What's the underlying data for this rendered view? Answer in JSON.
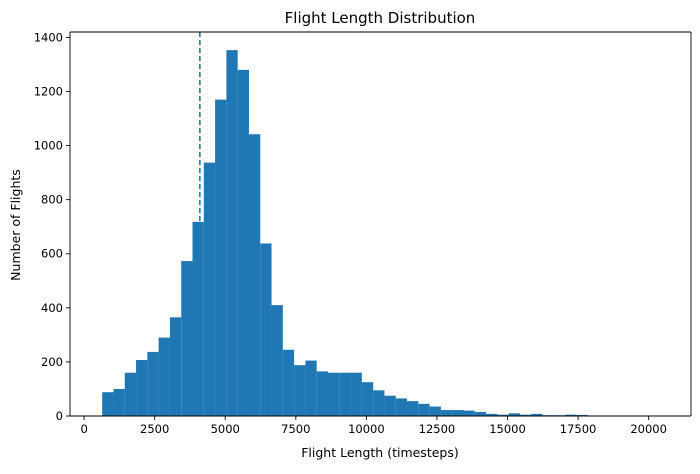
{
  "chart_data": {
    "type": "bar",
    "title": "Flight Length Distribution",
    "xlabel": "Flight Length (timesteps)",
    "ylabel": "Number of Flights",
    "xlim": [
      -500,
      21500
    ],
    "ylim": [
      0,
      1420
    ],
    "xticks": [
      0,
      2500,
      5000,
      7500,
      10000,
      12500,
      15000,
      17500,
      20000
    ],
    "yticks": [
      0,
      200,
      400,
      600,
      800,
      1000,
      1200,
      1400
    ],
    "grid": false,
    "bar_color": "#1f77b4",
    "bin_edges": [
      640,
      1040,
      1440,
      1840,
      2240,
      2640,
      3040,
      3440,
      3840,
      4240,
      4640,
      5040,
      5440,
      5840,
      6240,
      6640,
      7040,
      7440,
      7840,
      8240,
      8640,
      9040,
      9440,
      9840,
      10240,
      10640,
      11040,
      11440,
      11840,
      12240,
      12640,
      13040,
      13440,
      13840,
      14240,
      14640,
      15040,
      15440,
      15840,
      16240,
      16640,
      17040,
      17440,
      17840,
      18240,
      18640,
      19040,
      19440,
      19840,
      20240,
      20640
    ],
    "counts": [
      88,
      100,
      160,
      207,
      237,
      290,
      365,
      573,
      718,
      937,
      1170,
      1353,
      1280,
      1042,
      638,
      410,
      245,
      188,
      205,
      165,
      160,
      160,
      160,
      125,
      95,
      75,
      65,
      55,
      45,
      35,
      22,
      22,
      20,
      15,
      8,
      5,
      10,
      5,
      8,
      3,
      3,
      5,
      4,
      1,
      1,
      1,
      1,
      1,
      1,
      1
    ],
    "reference_line": {
      "x": 4100,
      "style": "dashed",
      "color": "#1f77b4"
    }
  }
}
